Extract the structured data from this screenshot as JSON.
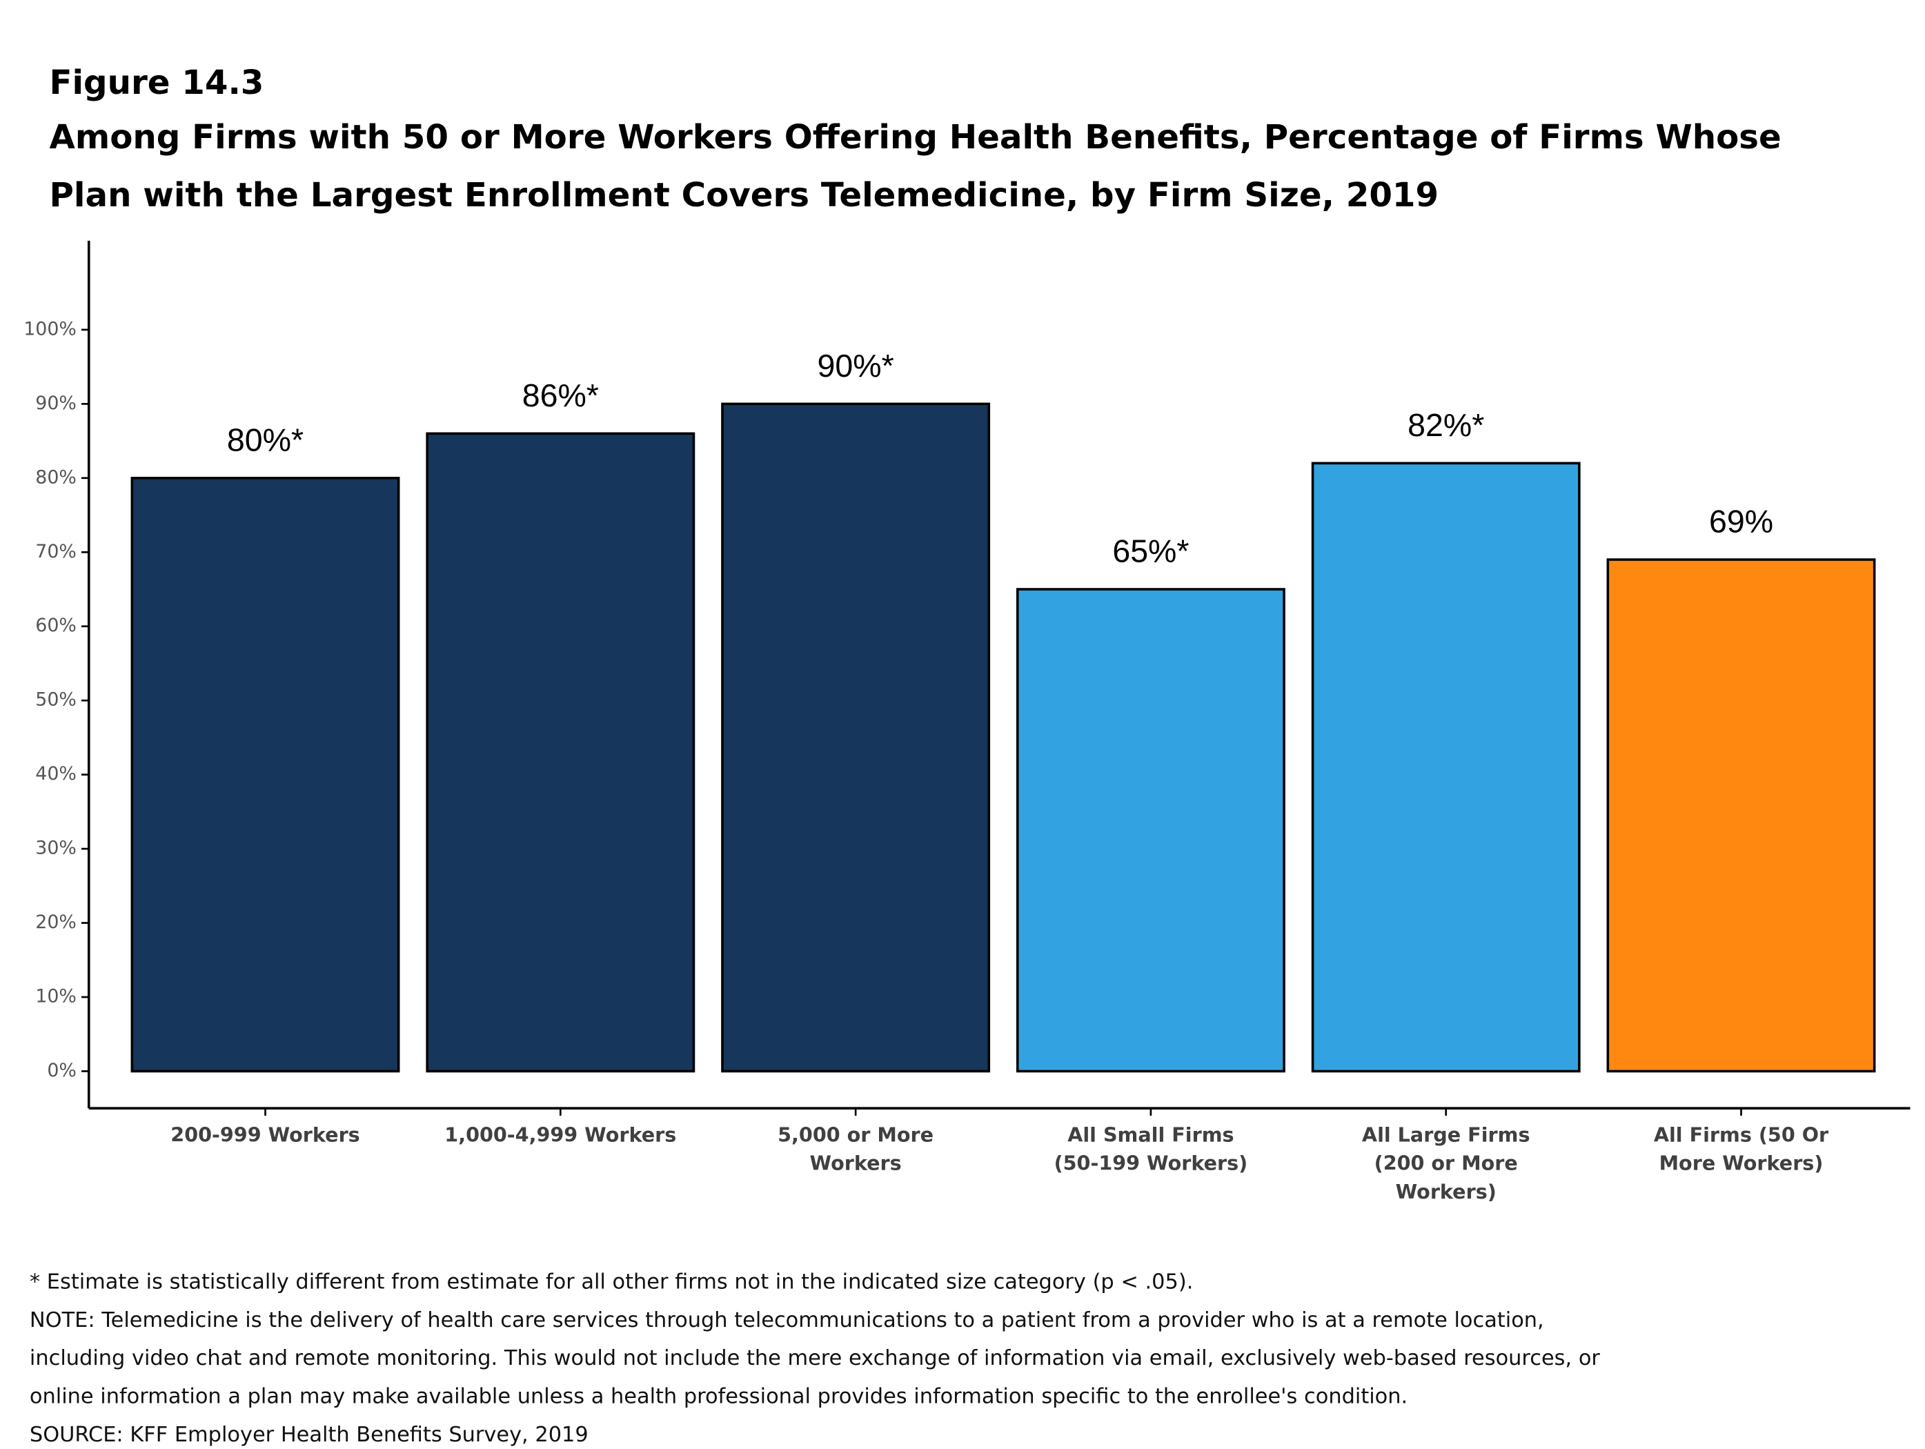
{
  "chart_data": {
    "type": "bar",
    "figure_label": "Figure 14.3",
    "title": "Among Firms with 50 or More Workers Offering Health Benefits, Percentage of Firms Whose\nPlan with the Largest Enrollment Covers Telemedicine, by Firm Size, 2019",
    "categories": [
      "200-999 Workers",
      "1,000-4,999 Workers",
      "5,000 or More\nWorkers",
      "All Small Firms\n(50-199 Workers)",
      "All Large Firms\n(200 or More\nWorkers)",
      "All Firms (50 Or\nMore Workers)"
    ],
    "values": [
      80,
      86,
      90,
      65,
      82,
      69
    ],
    "value_labels": [
      "80%*",
      "86%*",
      "90%*",
      "65%*",
      "82%*",
      "69%"
    ],
    "colors": [
      "#17365c",
      "#17365c",
      "#17365c",
      "#33a2e0",
      "#33a2e0",
      "#ff8811"
    ],
    "ylim": [
      -5,
      112
    ],
    "yticks": [
      {
        "value": 0,
        "label": "0%"
      },
      {
        "value": 10,
        "label": "10%"
      },
      {
        "value": 20,
        "label": "20%"
      },
      {
        "value": 30,
        "label": "30%"
      },
      {
        "value": 40,
        "label": "40%"
      },
      {
        "value": 50,
        "label": "50%"
      },
      {
        "value": 60,
        "label": "60%"
      },
      {
        "value": 70,
        "label": "70%"
      },
      {
        "value": 80,
        "label": "80%"
      },
      {
        "value": 90,
        "label": "90%"
      },
      {
        "value": 100,
        "label": "100%"
      }
    ],
    "grid": false,
    "notes": [
      "* Estimate is statistically different from estimate for all other firms not in the indicated size category (p < .05).",
      "NOTE: Telemedicine is the delivery of health care services through telecommunications to a patient from a provider who is at a remote location,",
      "including video chat and remote monitoring. This would not include the mere exchange of information via email, exclusively web-based resources, or",
      "online information a plan may make available unless a health professional provides information specific to the enrollee's condition.",
      "SOURCE: KFF Employer Health Benefits Survey, 2019"
    ]
  }
}
